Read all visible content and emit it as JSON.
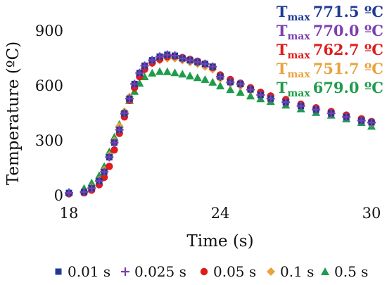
{
  "chart_data": {
    "type": "scatter",
    "xlabel": "Time (s)",
    "ylabel": "Temperature (ºC)",
    "xlim": [
      18,
      30
    ],
    "ylim": [
      0,
      900
    ],
    "x_ticks": [
      "18",
      "24",
      "30"
    ],
    "y_ticks": [
      "0",
      "300",
      "600",
      "900"
    ],
    "grid": false,
    "legend_position": "bottom",
    "series": [
      {
        "name": "0.01 s",
        "color": "#1f3a93",
        "marker": "square",
        "tmax": "771.5 ºC",
        "x": [
          18.0,
          18.6,
          18.9,
          19.2,
          19.4,
          19.6,
          19.8,
          20.0,
          20.2,
          20.4,
          20.6,
          20.8,
          21.0,
          21.3,
          21.6,
          21.9,
          22.2,
          22.5,
          22.8,
          23.1,
          23.4,
          23.7,
          24.0,
          24.4,
          24.8,
          25.2,
          25.6,
          26.0,
          26.6,
          27.2,
          27.8,
          28.4,
          29.0,
          29.6,
          30.0
        ],
        "y": [
          15,
          20,
          40,
          80,
          130,
          210,
          290,
          360,
          450,
          530,
          610,
          670,
          710,
          740,
          760,
          770,
          765,
          750,
          740,
          730,
          720,
          705,
          650,
          620,
          610,
          580,
          550,
          530,
          510,
          490,
          470,
          450,
          430,
          410,
          400
        ]
      },
      {
        "name": "0.025 s",
        "color": "#7b3fb0",
        "marker": "plus",
        "tmax": "770.0 ºC",
        "x": [
          18.0,
          18.6,
          18.9,
          19.2,
          19.4,
          19.6,
          19.8,
          20.0,
          20.2,
          20.4,
          20.6,
          20.8,
          21.0,
          21.3,
          21.6,
          21.9,
          22.2,
          22.5,
          22.8,
          23.1,
          23.4,
          23.7,
          24.0,
          24.4,
          24.8,
          25.2,
          25.6,
          26.0,
          26.6,
          27.2,
          27.8,
          28.4,
          29.0,
          29.6,
          30.0
        ],
        "y": [
          15,
          20,
          40,
          80,
          130,
          210,
          290,
          360,
          450,
          530,
          610,
          670,
          710,
          740,
          760,
          770,
          765,
          750,
          740,
          730,
          720,
          705,
          650,
          620,
          610,
          580,
          550,
          530,
          510,
          490,
          470,
          450,
          430,
          410,
          400
        ]
      },
      {
        "name": "0.05 s",
        "color": "#e01b1b",
        "marker": "circle",
        "tmax": "762.7 ºC",
        "x": [
          18.0,
          18.6,
          18.9,
          19.2,
          19.4,
          19.6,
          19.8,
          20.0,
          20.2,
          20.4,
          20.6,
          20.8,
          21.0,
          21.3,
          21.6,
          21.9,
          22.2,
          22.5,
          22.8,
          23.1,
          23.4,
          23.7,
          24.0,
          24.4,
          24.8,
          25.2,
          25.6,
          26.0,
          26.6,
          27.2,
          27.8,
          28.4,
          29.0,
          29.6,
          30.0
        ],
        "y": [
          10,
          15,
          30,
          60,
          100,
          160,
          250,
          340,
          430,
          520,
          590,
          650,
          690,
          725,
          745,
          760,
          762,
          755,
          745,
          735,
          720,
          700,
          660,
          635,
          615,
          590,
          565,
          545,
          525,
          500,
          480,
          460,
          440,
          420,
          405
        ]
      },
      {
        "name": "0.1 s",
        "color": "#e8a33d",
        "marker": "diamond",
        "tmax": "751.7 ºC",
        "x": [
          18.0,
          18.6,
          18.9,
          19.2,
          19.4,
          19.6,
          19.8,
          20.0,
          20.2,
          20.4,
          20.6,
          20.8,
          21.0,
          21.3,
          21.6,
          21.9,
          22.2,
          22.5,
          22.8,
          23.1,
          23.4,
          23.7,
          24.0,
          24.4,
          24.8,
          25.2,
          25.6,
          26.0,
          26.6,
          27.2,
          27.8,
          28.4,
          29.0,
          29.6,
          30.0
        ],
        "y": [
          12,
          20,
          45,
          85,
          140,
          220,
          300,
          380,
          460,
          540,
          610,
          660,
          695,
          725,
          740,
          750,
          750,
          740,
          730,
          720,
          705,
          690,
          640,
          615,
          600,
          575,
          550,
          530,
          510,
          490,
          470,
          450,
          430,
          410,
          395
        ]
      },
      {
        "name": "0.5 s",
        "color": "#1e9c4a",
        "marker": "triangle",
        "tmax": "679.0 ºC",
        "x": [
          18.0,
          18.6,
          18.9,
          19.2,
          19.4,
          19.6,
          19.8,
          20.0,
          20.2,
          20.4,
          20.6,
          20.8,
          21.0,
          21.3,
          21.6,
          21.9,
          22.2,
          22.5,
          22.8,
          23.1,
          23.4,
          23.7,
          24.0,
          24.4,
          24.8,
          25.2,
          25.6,
          26.0,
          26.6,
          27.2,
          27.8,
          28.4,
          29.0,
          29.6,
          30.0
        ],
        "y": [
          20,
          40,
          70,
          110,
          160,
          240,
          320,
          390,
          460,
          520,
          570,
          615,
          650,
          670,
          679,
          678,
          672,
          665,
          655,
          645,
          635,
          620,
          600,
          580,
          565,
          545,
          530,
          515,
          495,
          475,
          455,
          440,
          420,
          400,
          380
        ]
      }
    ]
  }
}
